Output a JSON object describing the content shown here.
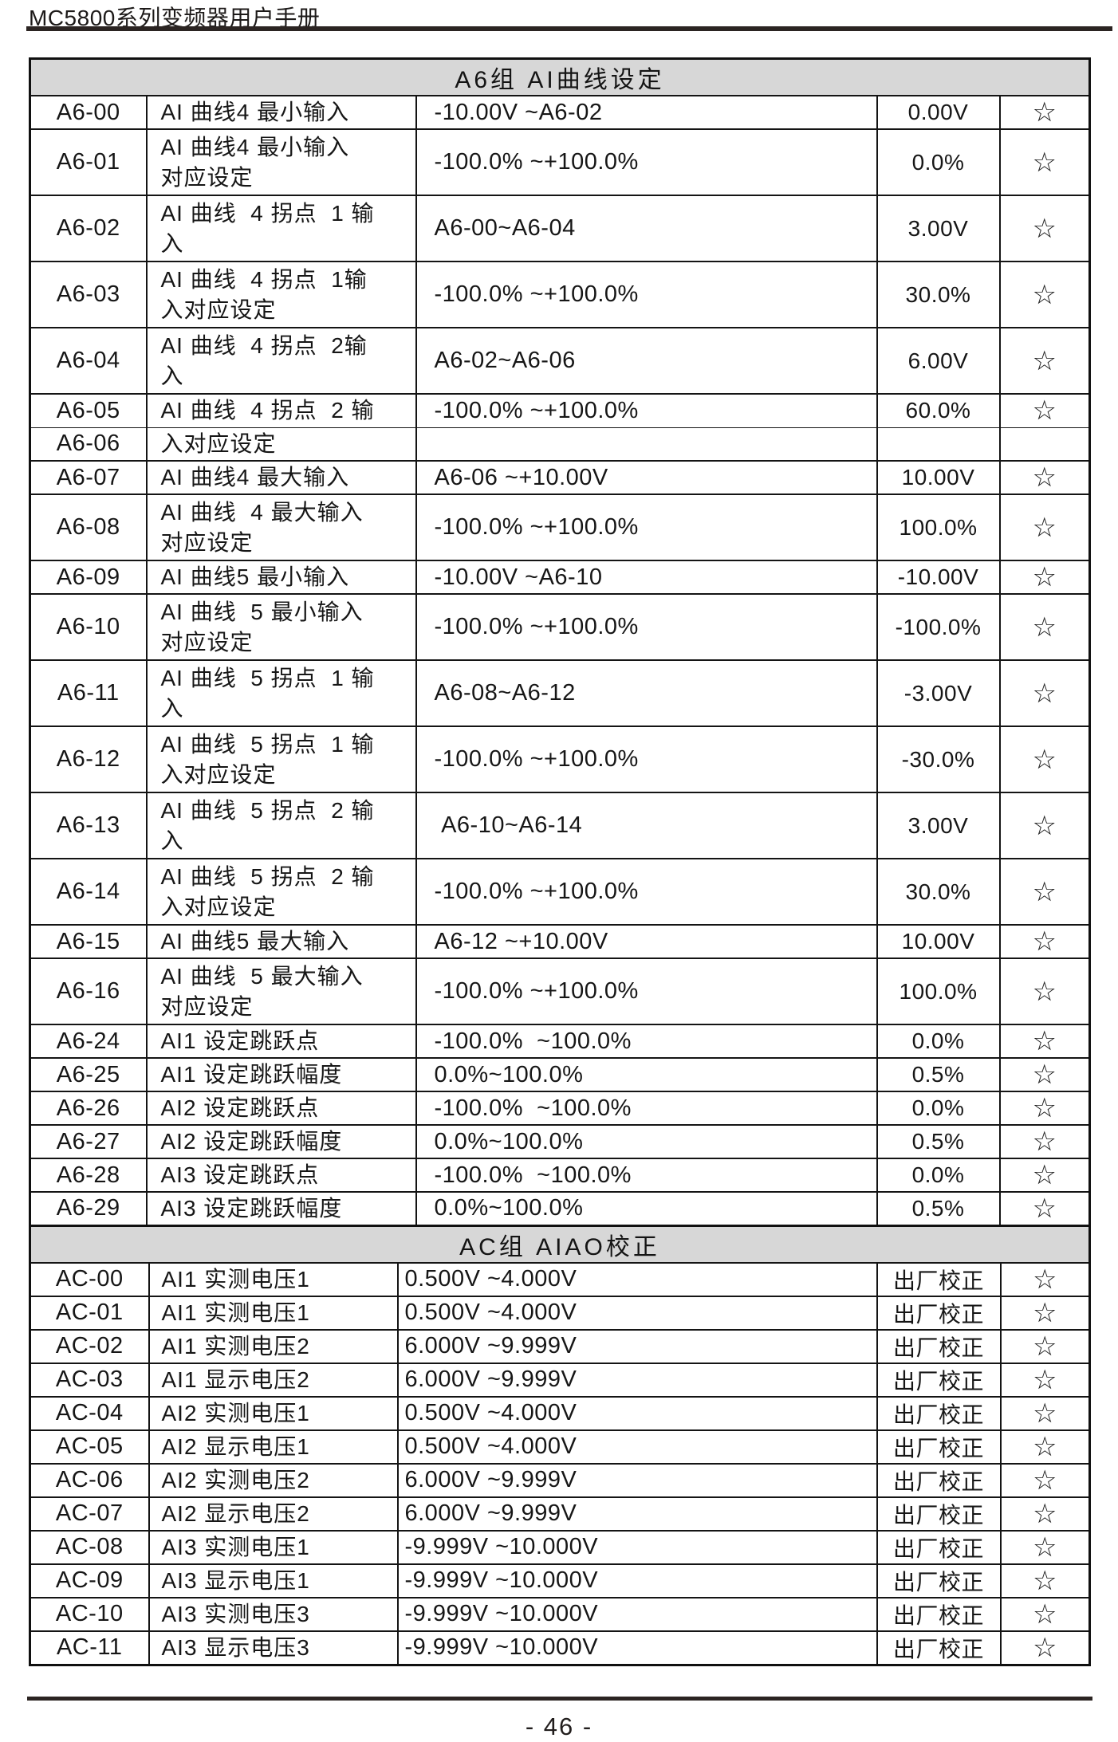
{
  "page": {
    "title": "MC5800系列变频器用户手册",
    "page_number": "- 46 -"
  },
  "colors": {
    "section_header_bg": "#d7d7d7",
    "border": "#141414",
    "text": "#161616",
    "rule": "#2b2422"
  },
  "star_symbol": "☆",
  "sections": [
    {
      "id": "a6",
      "title": "A6组  AI曲线设定",
      "rows": [
        {
          "code": "A6-00",
          "name": "AI 曲线4 最小输入",
          "range": "-10.00V ~A6-02",
          "default": "0.00V",
          "star": "☆"
        },
        {
          "code": "A6-01",
          "name": "AI 曲线4 最小输入\n对应设定",
          "range": "-100.0% ~+100.0%",
          "default": "0.0%",
          "star": "☆"
        },
        {
          "code": "A6-02",
          "name": "AI 曲线  4 拐点  1 输\n入",
          "range": "A6-00~A6-04",
          "default": "3.00V",
          "star": "☆"
        },
        {
          "code": "A6-03",
          "name": "AI 曲线  4 拐点  1输\n入对应设定",
          "range": "-100.0% ~+100.0%",
          "default": "30.0%",
          "star": "☆"
        },
        {
          "code": "A6-04",
          "name": "AI 曲线  4 拐点  2输\n入",
          "range": "A6-02~A6-06",
          "default": "6.00V",
          "star": "☆"
        },
        {
          "code": "A6-05",
          "name": "AI 曲线  4 拐点  2 输",
          "range": "-100.0% ~+100.0%",
          "default": "60.0%",
          "star": "☆"
        },
        {
          "code": "A6-06",
          "name": "入对应设定",
          "range": "",
          "default": "",
          "star": ""
        },
        {
          "code": "A6-07",
          "name": "AI 曲线4 最大输入",
          "range": "A6-06 ~+10.00V",
          "default": "10.00V",
          "star": "☆"
        },
        {
          "code": "A6-08",
          "name": "AI 曲线  4 最大输入\n对应设定",
          "range": "-100.0% ~+100.0%",
          "default": "100.0%",
          "star": "☆"
        },
        {
          "code": "A6-09",
          "name": "AI 曲线5 最小输入",
          "range": "-10.00V ~A6-10",
          "default": "-10.00V",
          "star": "☆"
        },
        {
          "code": "A6-10",
          "name": "AI 曲线  5 最小输入\n对应设定",
          "range": "-100.0% ~+100.0%",
          "default": "-100.0%",
          "star": "☆"
        },
        {
          "code": "A6-11",
          "name": "AI 曲线  5 拐点  1 输\n入",
          "range": "A6-08~A6-12",
          "default": "-3.00V",
          "star": "☆"
        },
        {
          "code": "A6-12",
          "name": "AI 曲线  5 拐点  1 输\n入对应设定",
          "range": "-100.0% ~+100.0%",
          "default": "-30.0%",
          "star": "☆"
        },
        {
          "code": "A6-13",
          "name": "AI 曲线  5 拐点  2 输\n入",
          "range": " A6-10~A6-14",
          "default": "3.00V",
          "star": "☆"
        },
        {
          "code": "A6-14",
          "name": "AI 曲线  5 拐点  2 输\n入对应设定",
          "range": "-100.0% ~+100.0%",
          "default": "30.0%",
          "star": "☆"
        },
        {
          "code": "A6-15",
          "name": "AI 曲线5 最大输入",
          "range": "A6-12 ~+10.00V",
          "default": "10.00V",
          "star": "☆"
        },
        {
          "code": "A6-16",
          "name": "AI 曲线  5 最大输入\n对应设定",
          "range": "-100.0% ~+100.0%",
          "default": "100.0%",
          "star": "☆"
        },
        {
          "code": "A6-24",
          "name": "AI1 设定跳跃点",
          "range": "-100.0%  ~100.0%",
          "default": "0.0%",
          "star": "☆"
        },
        {
          "code": "A6-25",
          "name": "AI1 设定跳跃幅度",
          "range": "0.0%~100.0%",
          "default": "0.5%",
          "star": "☆"
        },
        {
          "code": "A6-26",
          "name": "AI2 设定跳跃点",
          "range": "-100.0%  ~100.0%",
          "default": "0.0%",
          "star": "☆"
        },
        {
          "code": "A6-27",
          "name": "AI2 设定跳跃幅度",
          "range": "0.0%~100.0%",
          "default": "0.5%",
          "star": "☆"
        },
        {
          "code": "A6-28",
          "name": "AI3 设定跳跃点",
          "range": "-100.0%  ~100.0%",
          "default": "0.0%",
          "star": "☆"
        },
        {
          "code": "A6-29",
          "name": "AI3 设定跳跃幅度",
          "range": "0.0%~100.0%",
          "default": "0.5%",
          "star": "☆"
        }
      ]
    },
    {
      "id": "ac",
      "title": "AC组  AIAO校正",
      "rows": [
        {
          "code": "AC-00",
          "name": "AI1 实测电压1",
          "range": "0.500V ~4.000V",
          "default": "出厂校正",
          "star": "☆"
        },
        {
          "code": "AC-01",
          "name": "AI1 实测电压1",
          "range": "0.500V ~4.000V",
          "default": "出厂校正",
          "star": "☆"
        },
        {
          "code": "AC-02",
          "name": "AI1 实测电压2",
          "range": "6.000V ~9.999V",
          "default": "出厂校正",
          "star": "☆"
        },
        {
          "code": "AC-03",
          "name": "AI1 显示电压2",
          "range": "6.000V ~9.999V",
          "default": "出厂校正",
          "star": "☆"
        },
        {
          "code": "AC-04",
          "name": "AI2 实测电压1",
          "range": "0.500V ~4.000V",
          "default": "出厂校正",
          "star": "☆"
        },
        {
          "code": "AC-05",
          "name": "AI2 显示电压1",
          "range": "0.500V ~4.000V",
          "default": "出厂校正",
          "star": "☆"
        },
        {
          "code": "AC-06",
          "name": "AI2 实测电压2",
          "range": "6.000V ~9.999V",
          "default": "出厂校正",
          "star": "☆"
        },
        {
          "code": "AC-07",
          "name": "AI2 显示电压2",
          "range": "6.000V ~9.999V",
          "default": "出厂校正",
          "star": "☆"
        },
        {
          "code": "AC-08",
          "name": "AI3 实测电压1",
          "range": "-9.999V ~10.000V",
          "default": "出厂校正",
          "star": "☆"
        },
        {
          "code": "AC-09",
          "name": "AI3 显示电压1",
          "range": "-9.999V ~10.000V",
          "default": "出厂校正",
          "star": "☆"
        },
        {
          "code": "AC-10",
          "name": "AI3 实测电压3",
          "range": "-9.999V ~10.000V",
          "default": "出厂校正",
          "star": "☆"
        },
        {
          "code": "AC-11",
          "name": "AI3 显示电压3",
          "range": "-9.999V ~10.000V",
          "default": "出厂校正",
          "star": "☆"
        }
      ]
    }
  ]
}
